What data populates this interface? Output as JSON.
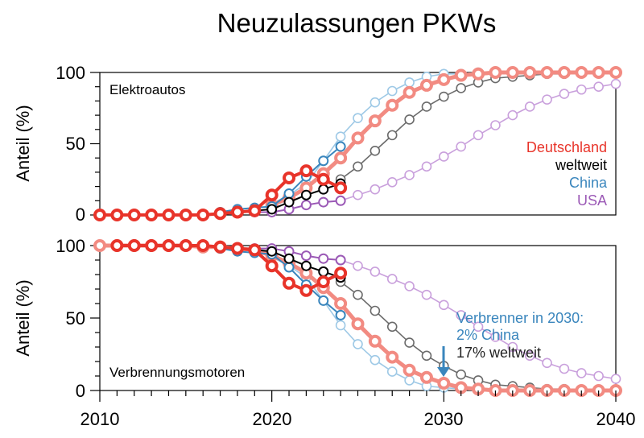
{
  "chart_data": {
    "type": "line",
    "title": "Neuzulassungen PKWs",
    "xlabel": "",
    "xlim": [
      2010,
      2040
    ],
    "x_ticks": [
      "2010",
      "2020",
      "2030",
      "2040"
    ],
    "y_ticks": [
      "0",
      "50",
      "100"
    ],
    "legend": {
      "placement": "right",
      "entries": [
        {
          "label": "Deutschland",
          "color": "#e8342a"
        },
        {
          "label": "weltweit",
          "color": "#000000"
        },
        {
          "label": "China",
          "color": "#3a86bd"
        },
        {
          "label": "USA",
          "color": "#9b59b6"
        }
      ]
    },
    "panels": [
      {
        "name": "Elektroautos",
        "label": "Elektroautos",
        "ylabel": "Anteil (%)",
        "ylim": [
          0,
          100
        ],
        "series": [
          {
            "name": "USA Prognose",
            "color": "#c9a0dc",
            "style": "forecast",
            "x": [
              2024,
              2025,
              2026,
              2027,
              2028,
              2029,
              2030,
              2031,
              2032,
              2033,
              2034,
              2035,
              2036,
              2037,
              2038,
              2039,
              2040
            ],
            "values": [
              10,
              14,
              18,
              23,
              28,
              34,
              41,
              48,
              56,
              63,
              70,
              76,
              81,
              85,
              88,
              90,
              92
            ]
          },
          {
            "name": "China Prognose",
            "color": "#9ec9e6",
            "style": "forecast",
            "x": [
              2020,
              2021,
              2022,
              2023,
              2024,
              2025,
              2026,
              2027,
              2028,
              2029,
              2030,
              2031,
              2032,
              2033,
              2034,
              2035,
              2036,
              2037,
              2038,
              2039,
              2040
            ],
            "values": [
              8,
              14,
              22,
              38,
              55,
              68,
              79,
              87,
              93,
              97,
              99,
              99,
              100,
              100,
              100,
              100,
              100,
              100,
              100,
              100,
              100
            ]
          },
          {
            "name": "weltweit Prognose",
            "color": "#6b6b6b",
            "style": "forecast",
            "x": [
              2024,
              2025,
              2026,
              2027,
              2028,
              2029,
              2030,
              2031,
              2032,
              2033,
              2034,
              2035,
              2036,
              2037,
              2038,
              2039,
              2040
            ],
            "values": [
              25,
              34,
              45,
              56,
              67,
              76,
              83,
              89,
              93,
              96,
              97,
              98,
              99,
              99,
              100,
              100,
              100
            ]
          },
          {
            "name": "Deutschland Prognose",
            "color": "#f28b82",
            "style": "forecast-thick",
            "x": [
              2020,
              2021,
              2022,
              2023,
              2024,
              2025,
              2026,
              2027,
              2028,
              2029,
              2030,
              2031,
              2032,
              2033,
              2034,
              2035,
              2036,
              2037,
              2038,
              2039,
              2040
            ],
            "values": [
              7,
              12,
              19,
              29,
              40,
              54,
              66,
              77,
              86,
              91,
              95,
              98,
              99,
              100,
              100,
              100,
              100,
              100,
              100,
              100,
              100
            ]
          },
          {
            "name": "USA",
            "color": "#9b59b6",
            "style": "actual",
            "x": [
              2017,
              2018,
              2019,
              2020,
              2021,
              2022,
              2023,
              2024
            ],
            "values": [
              1,
              2,
              2,
              2,
              4,
              7,
              9,
              10
            ]
          },
          {
            "name": "China",
            "color": "#3a86bd",
            "style": "actual",
            "x": [
              2017,
              2018,
              2019,
              2020,
              2021,
              2022,
              2023,
              2024
            ],
            "values": [
              2,
              4,
              5,
              6,
              15,
              27,
              38,
              48
            ]
          },
          {
            "name": "weltweit",
            "color": "#000000",
            "style": "actual",
            "x": [
              2017,
              2018,
              2019,
              2020,
              2021,
              2022,
              2023,
              2024
            ],
            "values": [
              1,
              2,
              3,
              4,
              9,
              14,
              18,
              22
            ]
          },
          {
            "name": "Deutschland",
            "color": "#e8342a",
            "style": "actual-thick",
            "x": [
              2010,
              2011,
              2012,
              2013,
              2014,
              2015,
              2016,
              2017,
              2018,
              2019,
              2020,
              2021,
              2022,
              2023,
              2024
            ],
            "values": [
              0,
              0,
              0,
              0,
              0,
              0,
              0,
              1,
              2,
              3,
              14,
              26,
              31,
              25,
              19
            ]
          }
        ]
      },
      {
        "name": "Verbrennungsmotoren",
        "label": "Verbrennungsmotoren",
        "ylabel": "Anteil (%)",
        "ylim": [
          0,
          100
        ],
        "series": [
          {
            "name": "USA Prognose",
            "color": "#c9a0dc",
            "style": "forecast",
            "x": [
              2024,
              2025,
              2026,
              2027,
              2028,
              2029,
              2030,
              2031,
              2032,
              2033,
              2034,
              2035,
              2036,
              2037,
              2038,
              2039,
              2040
            ],
            "values": [
              90,
              86,
              82,
              77,
              72,
              66,
              59,
              52,
              44,
              37,
              30,
              24,
              19,
              15,
              12,
              10,
              8
            ]
          },
          {
            "name": "China Prognose",
            "color": "#9ec9e6",
            "style": "forecast",
            "x": [
              2020,
              2021,
              2022,
              2023,
              2024,
              2025,
              2026,
              2027,
              2028,
              2029,
              2030,
              2031,
              2032,
              2033,
              2034,
              2035,
              2036,
              2037,
              2038,
              2039,
              2040
            ],
            "values": [
              92,
              86,
              78,
              62,
              45,
              32,
              21,
              13,
              7,
              3,
              2,
              1,
              0,
              0,
              0,
              0,
              0,
              0,
              0,
              0,
              0
            ]
          },
          {
            "name": "weltweit Prognose",
            "color": "#6b6b6b",
            "style": "forecast",
            "x": [
              2024,
              2025,
              2026,
              2027,
              2028,
              2029,
              2030,
              2031,
              2032,
              2033,
              2034,
              2035,
              2036,
              2037,
              2038,
              2039,
              2040
            ],
            "values": [
              75,
              66,
              55,
              44,
              33,
              24,
              17,
              11,
              7,
              4,
              3,
              2,
              1,
              1,
              0,
              0,
              0
            ]
          },
          {
            "name": "Deutschland Prognose",
            "color": "#f28b82",
            "style": "forecast-thick",
            "x": [
              2010,
              2011,
              2012,
              2013,
              2014,
              2015,
              2016,
              2017,
              2018,
              2019,
              2020,
              2021,
              2022,
              2023,
              2024,
              2025,
              2026,
              2027,
              2028,
              2029,
              2030,
              2031,
              2032,
              2033,
              2034,
              2035,
              2036,
              2037,
              2038,
              2039,
              2040
            ],
            "values": [
              100,
              100,
              100,
              100,
              100,
              100,
              99,
              99,
              98,
              97,
              93,
              88,
              81,
              71,
              60,
              46,
              34,
              23,
              14,
              9,
              5,
              2,
              1,
              0,
              0,
              0,
              0,
              0,
              0,
              0,
              0
            ]
          },
          {
            "name": "USA",
            "color": "#9b59b6",
            "style": "actual",
            "x": [
              2017,
              2018,
              2019,
              2020,
              2021,
              2022,
              2023,
              2024
            ],
            "values": [
              99,
              98,
              98,
              98,
              96,
              93,
              91,
              90
            ]
          },
          {
            "name": "China",
            "color": "#3a86bd",
            "style": "actual",
            "x": [
              2017,
              2018,
              2019,
              2020,
              2021,
              2022,
              2023,
              2024
            ],
            "values": [
              98,
              96,
              95,
              94,
              85,
              73,
              62,
              52
            ]
          },
          {
            "name": "weltweit",
            "color": "#000000",
            "style": "actual",
            "x": [
              2017,
              2018,
              2019,
              2020,
              2021,
              2022,
              2023,
              2024
            ],
            "values": [
              99,
              98,
              97,
              96,
              91,
              86,
              82,
              78
            ]
          },
          {
            "name": "Deutschland",
            "color": "#e8342a",
            "style": "actual-thick",
            "x": [
              2011,
              2012,
              2013,
              2014,
              2015,
              2016,
              2017,
              2018,
              2019,
              2020,
              2021,
              2022,
              2023,
              2024
            ],
            "values": [
              100,
              100,
              100,
              100,
              100,
              100,
              99,
              98,
              97,
              86,
              74,
              69,
              75,
              81
            ]
          }
        ]
      }
    ],
    "annotation": {
      "line1": "Verbrenner in 2030:",
      "line2": "2% China",
      "line3": "17% weltweit",
      "arrow_x": 2030
    }
  }
}
